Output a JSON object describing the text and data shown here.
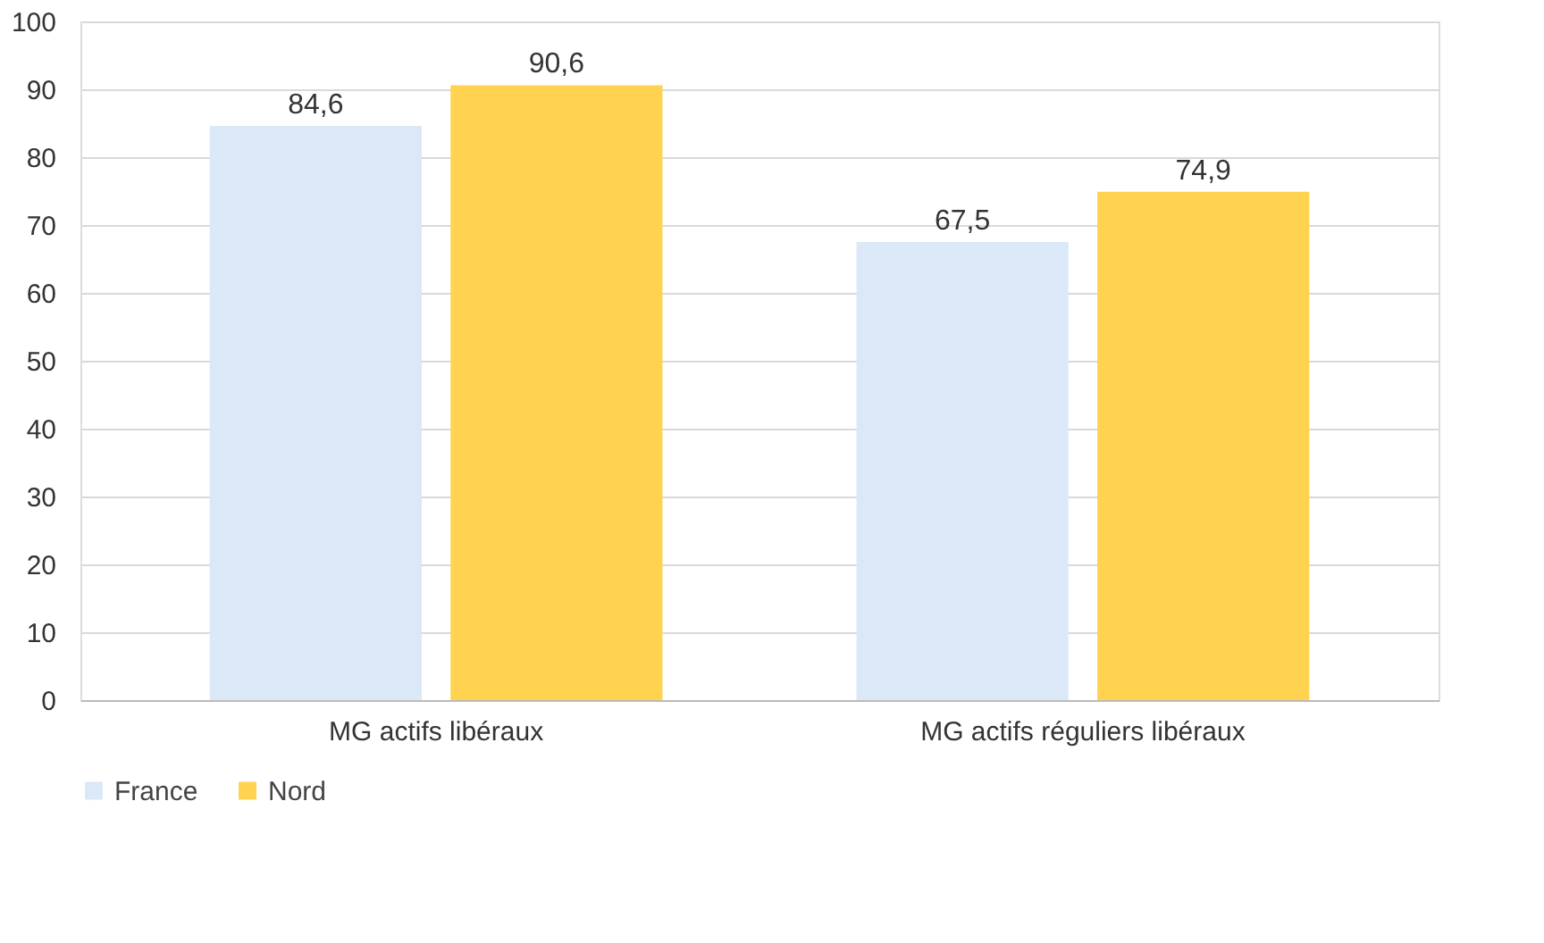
{
  "chart_data": {
    "type": "bar",
    "categories": [
      "MG actifs libéraux",
      "MG actifs réguliers libéraux"
    ],
    "series": [
      {
        "name": "France",
        "color": "#dae8f7",
        "values": [
          84.6,
          67.5
        ],
        "value_labels": [
          "84,6",
          "67,5"
        ]
      },
      {
        "name": "Nord",
        "color": "#ffd34f",
        "values": [
          90.6,
          74.9
        ],
        "value_labels": [
          "90,6",
          "74,9"
        ]
      }
    ],
    "ylim": [
      0,
      100
    ],
    "yticks": [
      0,
      10,
      20,
      30,
      40,
      50,
      60,
      70,
      80,
      90,
      100
    ],
    "grid": "y",
    "legend": "bottom"
  }
}
